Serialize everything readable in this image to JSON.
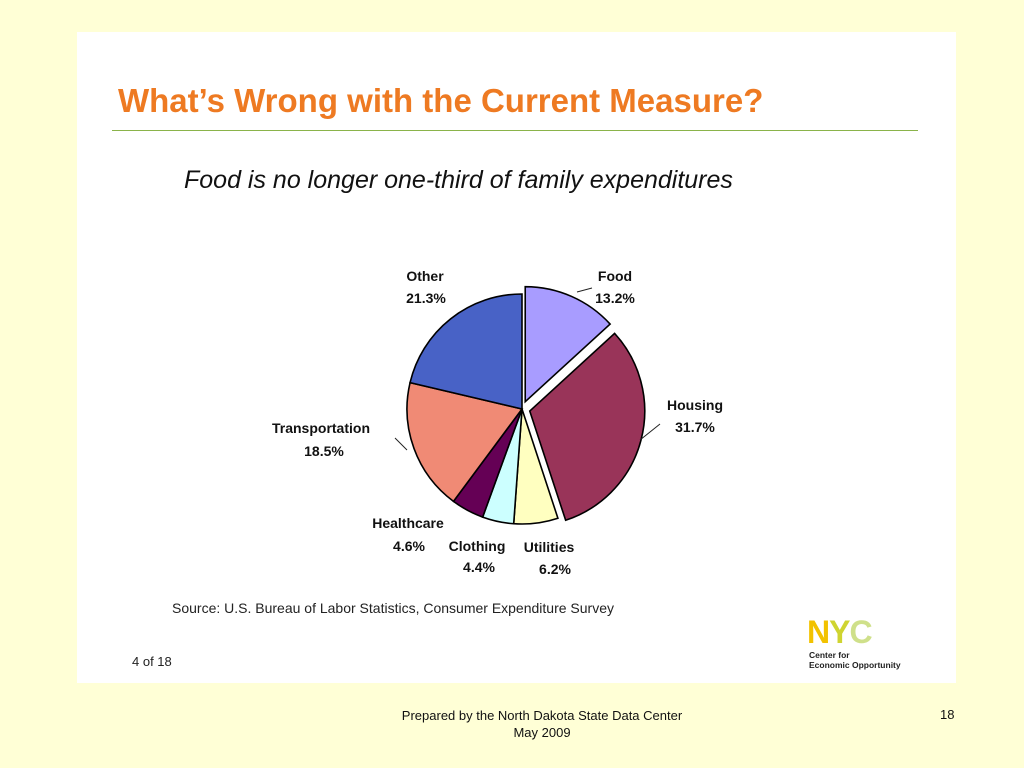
{
  "slide": {
    "title": "What’s Wrong with the Current Measure?",
    "subtitle": "Food is no longer one-third of family expenditures",
    "source": "Source: U.S. Bureau of Labor Statistics, Consumer Expenditure Survey",
    "counter": "4 of 18",
    "logo": {
      "mark": [
        "N",
        "Y",
        "C"
      ],
      "line1": "Center for",
      "line2": "Economic Opportunity"
    }
  },
  "footer": {
    "line1": "Prepared by the North Dakota State Data Center",
    "line2": "May 2009",
    "page_number": "18"
  },
  "chart_data": {
    "type": "pie",
    "title": "",
    "slices": [
      {
        "name": "Food",
        "value": 13.2,
        "label": "13.2%",
        "color": "#a89cff"
      },
      {
        "name": "Housing",
        "value": 31.7,
        "label": "31.7%",
        "color": "#993459"
      },
      {
        "name": "Utilities",
        "value": 6.2,
        "label": "6.2%",
        "color": "#ffffc0"
      },
      {
        "name": "Clothing",
        "value": 4.4,
        "label": "4.4%",
        "color": "#ccffff"
      },
      {
        "name": "Healthcare",
        "value": 4.6,
        "label": "4.6%",
        "color": "#650055"
      },
      {
        "name": "Transportation",
        "value": 18.5,
        "label": "18.5%",
        "color": "#f08a75"
      },
      {
        "name": "Other",
        "value": 21.3,
        "label": "21.3%",
        "color": "#4862c6"
      }
    ]
  }
}
